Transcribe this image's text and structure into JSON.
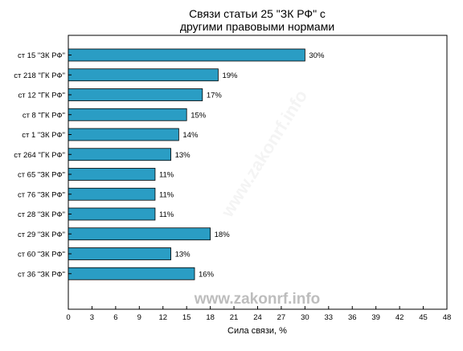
{
  "chart_data": {
    "type": "bar",
    "orientation": "horizontal",
    "title_lines": [
      "Связи статьи 25 \"ЗК РФ\" с",
      "другими правовыми нормами"
    ],
    "xlabel": "Сила связи, %",
    "ylabel": "",
    "xlim": [
      0,
      48
    ],
    "x_ticks": [
      0,
      3,
      6,
      9,
      12,
      15,
      18,
      21,
      24,
      27,
      30,
      33,
      36,
      39,
      42,
      45,
      48
    ],
    "grid": false,
    "legend": "none",
    "bar_color": "#2a9dc4",
    "categories": [
      "ст 15 \"ЗК РФ\"",
      "ст 218 \"ГК РФ\"",
      "ст 12 \"ГК РФ\"",
      "ст 8 \"ГК РФ\"",
      "ст 1 \"ЗК РФ\"",
      "ст 264 \"ГК РФ\"",
      "ст 65 \"ЗК РФ\"",
      "ст 76 \"ЗК РФ\"",
      "ст 28 \"ЗК РФ\"",
      "ст 29 \"ЗК РФ\"",
      "ст 60 \"ЗК РФ\"",
      "ст 36 \"ЗК РФ\""
    ],
    "values": [
      30,
      19,
      17,
      15,
      14,
      13,
      11,
      11,
      11,
      18,
      13,
      16
    ],
    "data_labels": [
      "30%",
      "19%",
      "17%",
      "15%",
      "14%",
      "13%",
      "11%",
      "11%",
      "11%",
      "18%",
      "13%",
      "16%"
    ]
  },
  "watermark": {
    "text": "www.zakonrf.info",
    "diagonal_text": "www.zakonrf.info",
    "color": "#bdbdbd"
  }
}
